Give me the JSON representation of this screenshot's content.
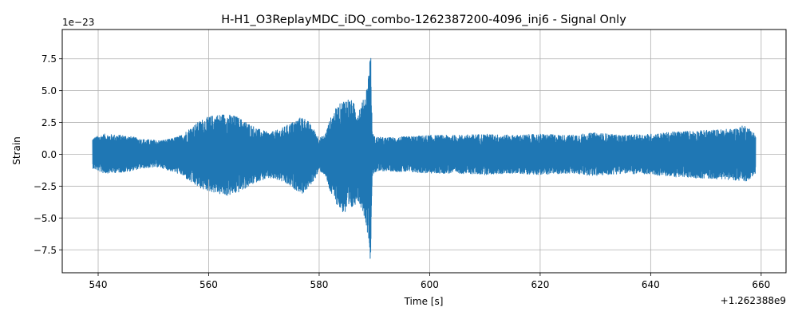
{
  "chart_data": {
    "type": "line",
    "title": "H-H1_O3ReplayMDC_iDQ_combo-1262387200-4096_inj6 - Signal Only",
    "xlabel": "Time [s]",
    "ylabel": "Strain",
    "x_offset_label": "+1.262388e9",
    "y_scale_label": "1e−23",
    "xlim": [
      533.5,
      664.5
    ],
    "ylim": [
      -9.3,
      9.8
    ],
    "x_ticks": [
      540,
      560,
      580,
      600,
      620,
      640,
      660
    ],
    "x_tick_labels": [
      "540",
      "560",
      "580",
      "600",
      "620",
      "640",
      "660"
    ],
    "y_ticks": [
      -7.5,
      -5.0,
      -2.5,
      0.0,
      2.5,
      5.0,
      7.5
    ],
    "y_tick_labels": [
      "−7.5",
      "−5.0",
      "−2.5",
      "0.0",
      "2.5",
      "5.0",
      "7.5"
    ],
    "grid": true,
    "series": [
      {
        "color": "#1f77b4",
        "x_start": 539,
        "x_end": 659,
        "envelope": {
          "t": [
            539,
            541,
            545,
            548,
            551,
            553,
            555,
            557,
            559,
            561,
            563,
            565,
            567,
            569,
            571,
            573,
            575,
            577,
            578,
            579,
            580,
            581,
            582,
            583,
            584,
            585,
            586,
            587,
            588,
            588.5,
            589,
            589.3,
            589.6,
            590,
            592,
            596,
            600,
            605,
            610,
            615,
            620,
            625,
            630,
            635,
            640,
            645,
            650,
            655,
            657,
            658,
            659
          ],
          "upper": [
            1.3,
            1.6,
            1.5,
            1.2,
            1.1,
            1.2,
            1.5,
            2.2,
            2.8,
            3.1,
            3.2,
            3.0,
            2.5,
            2.0,
            1.7,
            2.0,
            2.5,
            3.0,
            2.6,
            2.0,
            1.3,
            1.5,
            2.8,
            3.6,
            4.1,
            4.5,
            4.2,
            3.5,
            4.3,
            5.0,
            6.7,
            9.1,
            1.8,
            1.4,
            1.3,
            1.4,
            1.5,
            1.5,
            1.6,
            1.5,
            1.6,
            1.5,
            1.7,
            1.5,
            1.6,
            1.8,
            1.9,
            2.0,
            2.3,
            2.0,
            1.6
          ],
          "lower": [
            -1.1,
            -1.5,
            -1.4,
            -1.1,
            -1.0,
            -1.3,
            -1.6,
            -2.3,
            -2.8,
            -3.0,
            -3.3,
            -3.1,
            -2.6,
            -2.1,
            -1.9,
            -2.1,
            -2.6,
            -3.1,
            -2.7,
            -2.1,
            -1.3,
            -1.6,
            -3.0,
            -3.8,
            -4.5,
            -4.8,
            -4.3,
            -3.6,
            -4.6,
            -5.5,
            -6.9,
            -8.5,
            -1.8,
            -1.4,
            -1.3,
            -1.4,
            -1.5,
            -1.5,
            -1.6,
            -1.5,
            -1.6,
            -1.5,
            -1.7,
            -1.5,
            -1.6,
            -1.8,
            -1.9,
            -2.0,
            -2.2,
            -1.9,
            -1.5
          ]
        }
      }
    ]
  }
}
